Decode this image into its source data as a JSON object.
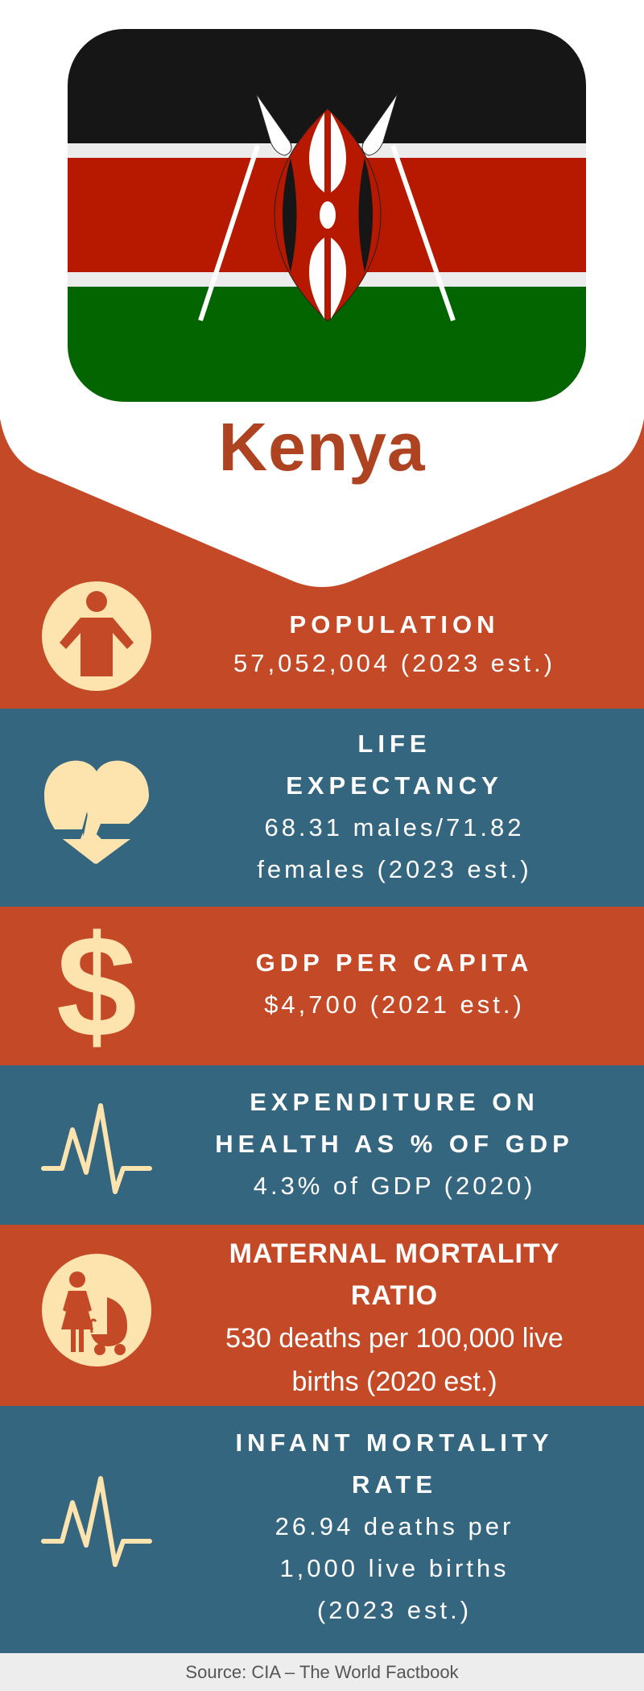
{
  "country": "Kenya",
  "colors": {
    "orange": "#c44a27",
    "blue": "#35667f",
    "cream": "#fde3ad",
    "title": "#ad4320"
  },
  "sections": [
    {
      "icon": "person-icon",
      "title": [
        "POPULATION"
      ],
      "value": [
        "57,052,004 (2023 est.)"
      ]
    },
    {
      "icon": "heart-pulse-icon",
      "title": [
        "LIFE",
        "EXPECTANCY"
      ],
      "value": [
        "68.31 males/71.82",
        "females (2023 est.)"
      ]
    },
    {
      "icon": "dollar-icon",
      "title": [
        "GDP PER CAPITA"
      ],
      "value": [
        "$4,700 (2021 est.)"
      ]
    },
    {
      "icon": "heartbeat-line-icon",
      "title": [
        "EXPENDITURE ON",
        "HEALTH AS % OF GDP"
      ],
      "value": [
        "4.3% of GDP (2020)"
      ]
    },
    {
      "icon": "mother-stroller-icon",
      "title": [
        "MATERNAL MORTALITY",
        "RATIO"
      ],
      "value": [
        "530 deaths per 100,000 live",
        "births (2020 est.)"
      ]
    },
    {
      "icon": "heartbeat-line-icon",
      "title": [
        "INFANT MORTALITY",
        "RATE"
      ],
      "value": [
        "26.94 deaths per",
        "1,000 live births",
        "(2023 est.)"
      ]
    }
  ],
  "source": "Source: CIA – The World Factbook"
}
